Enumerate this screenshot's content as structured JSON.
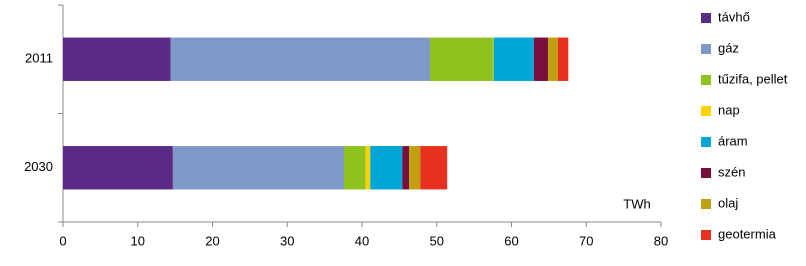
{
  "chart_data": {
    "type": "stacked-barh",
    "categories": [
      "2011",
      "2030"
    ],
    "series": [
      {
        "name": "távhő",
        "color": "#5b2a86",
        "values": [
          14.4,
          14.7
        ]
      },
      {
        "name": "gáz",
        "color": "#7e98c8",
        "values": [
          34.7,
          22.9
        ]
      },
      {
        "name": "tűzifa, pellet",
        "color": "#8dc21f",
        "values": [
          8.4,
          2.9
        ]
      },
      {
        "name": "nap",
        "color": "#ffd200",
        "values": [
          0.1,
          0.6
        ]
      },
      {
        "name": "áram",
        "color": "#00a6d6",
        "values": [
          5.4,
          4.3
        ]
      },
      {
        "name": "szén",
        "color": "#7a0e3d",
        "values": [
          1.9,
          0.9
        ]
      },
      {
        "name": "olaj",
        "color": "#c0a010",
        "values": [
          1.3,
          1.5
        ]
      },
      {
        "name": "geotermia",
        "color": "#e8301e",
        "values": [
          1.4,
          3.6
        ]
      }
    ],
    "xlim": [
      0,
      80
    ],
    "xticks": [
      0,
      10,
      20,
      30,
      40,
      50,
      60,
      70,
      80
    ],
    "annotation": "TWh"
  }
}
